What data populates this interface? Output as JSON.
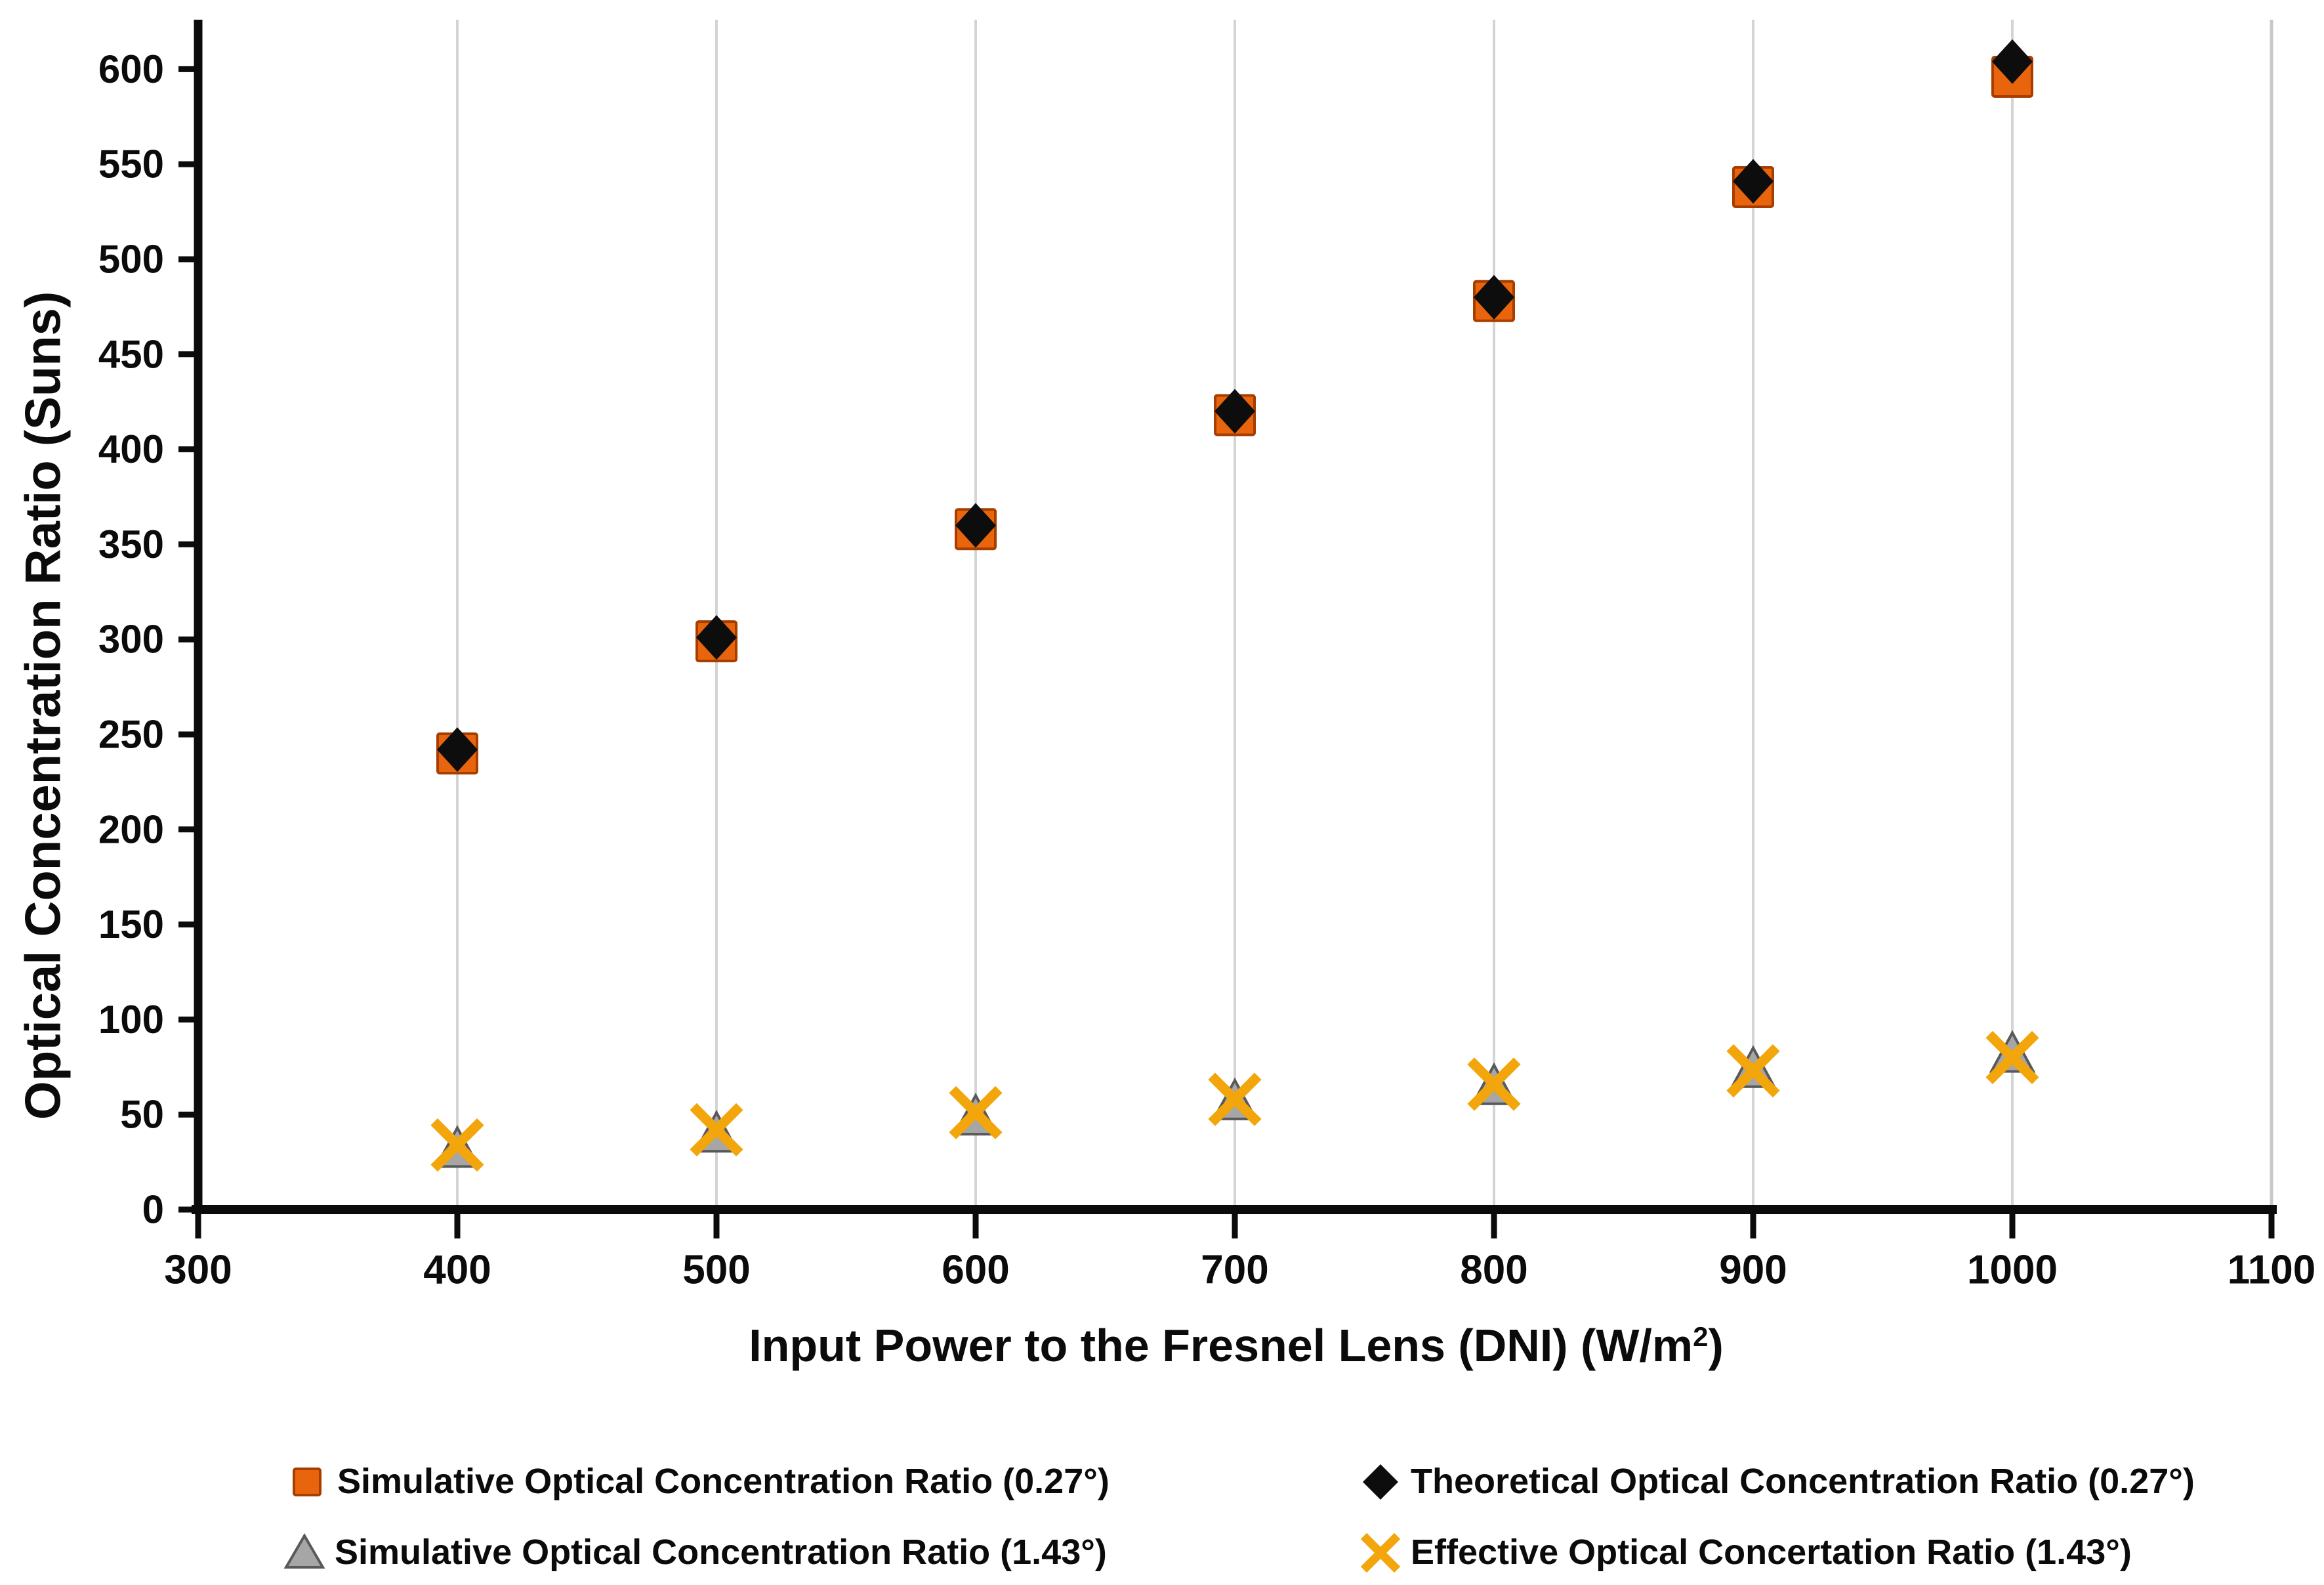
{
  "colors": {
    "background": "#FFFFFF",
    "axis": "#0B0B0B",
    "grid": "#D4D4D4",
    "plot_right_border": "#C9C9C9",
    "square_fill": "#E8650E",
    "square_border": "#A63E00",
    "diamond_fill": "#0D0D0D",
    "triangle_fill": "#A6A6A6",
    "triangle_border": "#595959",
    "x_stroke": "#F2A60C"
  },
  "legend": {
    "items": [
      {
        "label": "Simulative Optical Concentration Ratio (0.27°)",
        "marker": "square"
      },
      {
        "label": "Theoretical Optical Concentration Ratio (0.27°)",
        "marker": "diamond"
      },
      {
        "label": "Simulative Optical Concentration Ratio (1.43°)",
        "marker": "triangle"
      },
      {
        "label": "Effective Optical Concertation Ratio (1.43°)",
        "marker": "x"
      }
    ]
  },
  "chart_data": {
    "type": "scatter",
    "title": "",
    "xlabel": "Input Power to the Fresnel Lens (DNI) (W/m2)",
    "xlabel_main": "Input Power to the Fresnel Lens (DNI) (W/m",
    "xlabel_sup": "2",
    "xlabel_close": ")",
    "ylabel": "Optical Concentration Ratio (Suns)",
    "xlim": [
      300,
      1100
    ],
    "ylim": [
      0,
      625
    ],
    "x_ticks": [
      300,
      400,
      500,
      600,
      700,
      800,
      900,
      1000,
      1100
    ],
    "y_ticks": [
      0,
      50,
      100,
      150,
      200,
      250,
      300,
      350,
      400,
      450,
      500,
      550,
      600
    ],
    "gridlines": {
      "vertical_at": [
        400,
        500,
        600,
        700,
        800,
        900,
        1000
      ],
      "right_border": 1100,
      "horizontal": false
    },
    "legend_position": "bottom",
    "x": [
      400,
      500,
      600,
      700,
      800,
      900,
      1000
    ],
    "series": [
      {
        "name": "Simulative Optical Concentration Ratio (0.27°)",
        "marker": "square",
        "values": [
          240,
          299,
          358,
          418,
          478,
          538,
          596
        ]
      },
      {
        "name": "Theoretical Optical Concentration Ratio (0.27°)",
        "marker": "diamond",
        "values": [
          242,
          301,
          360,
          420,
          480,
          541,
          604
        ]
      },
      {
        "name": "Simulative Optical Concentration Ratio (1.43°)",
        "marker": "triangle",
        "values": [
          32,
          40,
          49,
          57,
          65,
          74,
          82
        ]
      },
      {
        "name": "Effective Optical Concertation Ratio (1.43°)",
        "marker": "x",
        "values": [
          34,
          42,
          51,
          58,
          66,
          73,
          80
        ]
      }
    ]
  }
}
